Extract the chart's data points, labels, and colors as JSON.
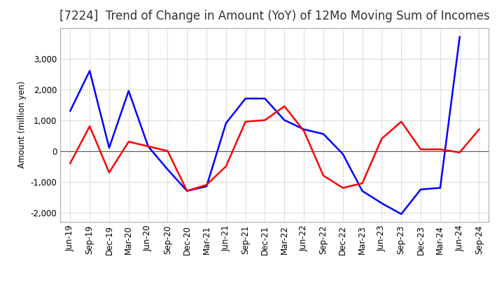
{
  "title": "[7224]  Trend of Change in Amount (YoY) of 12Mo Moving Sum of Incomes",
  "ylabel": "Amount (million yen)",
  "x_labels": [
    "Jun-19",
    "Sep-19",
    "Dec-19",
    "Mar-20",
    "Jun-20",
    "Sep-20",
    "Dec-20",
    "Mar-21",
    "Jun-21",
    "Sep-21",
    "Dec-21",
    "Mar-22",
    "Jun-22",
    "Sep-22",
    "Dec-22",
    "Mar-23",
    "Jun-23",
    "Sep-23",
    "Dec-23",
    "Mar-24",
    "Jun-24",
    "Sep-24"
  ],
  "ordinary_income": [
    1300,
    2600,
    100,
    1950,
    150,
    -600,
    -1300,
    -1150,
    900,
    1700,
    1700,
    1000,
    700,
    550,
    -100,
    -1300,
    -1700,
    -2050,
    -1250,
    -1200,
    3700,
    null
  ],
  "net_income": [
    -400,
    800,
    -700,
    300,
    150,
    0,
    -1300,
    -1100,
    -500,
    950,
    1000,
    1450,
    650,
    -800,
    -1200,
    -1050,
    400,
    950,
    50,
    50,
    -50,
    700
  ],
  "ordinary_income_color": "#0000FF",
  "net_income_color": "#FF0000",
  "ylim": [
    -2300,
    4000
  ],
  "yticks": [
    -2000,
    -1000,
    0,
    1000,
    2000,
    3000
  ],
  "background_color": "#FFFFFF",
  "grid_color": "#AAAAAA",
  "title_fontsize": 12,
  "axis_fontsize": 8.5,
  "legend_fontsize": 10
}
